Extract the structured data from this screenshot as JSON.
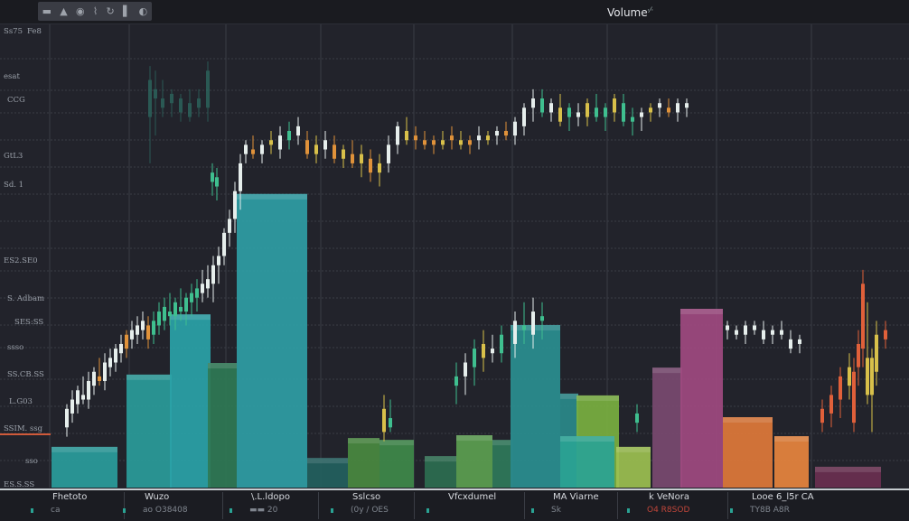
{
  "toolbar": {
    "icons": [
      "square-icon",
      "flask-icon",
      "settings-icon",
      "pin-icon",
      "refresh-icon",
      "bookmark-icon",
      "theme-icon"
    ],
    "glyphs": [
      "▬",
      "▲",
      "◉",
      "⌇",
      "↻",
      "▌",
      "◐"
    ]
  },
  "header": {
    "title": "Volume",
    "title_mark": "⋅⁄⋅"
  },
  "left_axis_labels": [
    "Ss75",
    "Fe8",
    "esat",
    "CCG",
    "GtL3",
    "Sd. 1",
    "ES2.SE0",
    "S. Adbam",
    "SES:SS",
    "ssso",
    "SS.CB.SS",
    "L.G03",
    "SSIM. ssg",
    "sso",
    "ES.S.SS"
  ],
  "bottom_sections": [
    {
      "title": "Fhetoto",
      "sub": "ca"
    },
    {
      "title": "Wuzo",
      "sub": "ao  O38408"
    },
    {
      "title": "\\.L.ldopo",
      "sub": "▬▬  20"
    },
    {
      "title": "Sslcso",
      "sub": "(0y / OES"
    },
    {
      "title": "Vfcxdumel",
      "sub": ""
    },
    {
      "title": "MA Viarne",
      "sub": "Sk"
    },
    {
      "title": "k VeNora",
      "sub": "O4 R8SOD"
    },
    {
      "title": "Looe   6_l5r   CA",
      "sub": "TY8B          A8R"
    }
  ],
  "colors": {
    "background": "#22232b",
    "grid": "#3a3c46",
    "candle_palette": [
      "#e6eeec",
      "#e0923a",
      "#3fbf8f",
      "#2d6b62",
      "#d8c04a",
      "#e0603a"
    ],
    "accent_line": "#d05a3a"
  },
  "chart_data": {
    "type": "bar",
    "overlay_type": "candlestick",
    "title": "Volume",
    "ylim": [
      0,
      100
    ],
    "xlim": [
      0,
      100.6
    ],
    "grid": true,
    "volume_bars": [
      {
        "start": 5.7,
        "end": 13.0,
        "value": 8.8,
        "color": "#2a9d9c"
      },
      {
        "start": 14.0,
        "end": 19.0,
        "value": 24.4,
        "color": "#2a9c9a"
      },
      {
        "start": 18.8,
        "end": 23.3,
        "value": 37.4,
        "color": "#2aa3a8"
      },
      {
        "start": 23.0,
        "end": 26.2,
        "value": 26.9,
        "color": "#2f7a55"
      },
      {
        "start": 26.2,
        "end": 34.0,
        "value": 63.4,
        "color": "#2f9ea5"
      },
      {
        "start": 34.0,
        "end": 38.5,
        "value": 6.4,
        "color": "#23615e"
      },
      {
        "start": 38.5,
        "end": 42.0,
        "value": 10.7,
        "color": "#4a8a40"
      },
      {
        "start": 42.0,
        "end": 45.8,
        "value": 10.3,
        "color": "#3f8a4a"
      },
      {
        "start": 47.0,
        "end": 50.5,
        "value": 6.8,
        "color": "#2c6e50"
      },
      {
        "start": 50.5,
        "end": 54.5,
        "value": 11.3,
        "color": "#5ca050"
      },
      {
        "start": 54.5,
        "end": 56.5,
        "value": 10.3,
        "color": "#2f7a5a"
      },
      {
        "start": 56.5,
        "end": 62.0,
        "value": 35.1,
        "color": "#2a8f90"
      },
      {
        "start": 62.0,
        "end": 64.0,
        "value": 20.3,
        "color": "#2a8a8a"
      },
      {
        "start": 63.8,
        "end": 68.5,
        "value": 19.9,
        "color": "#7ab040"
      },
      {
        "start": 62.0,
        "end": 68.0,
        "value": 11.1,
        "color": "#2aa394"
      },
      {
        "start": 68.2,
        "end": 72.0,
        "value": 8.8,
        "color": "#9cc050"
      },
      {
        "start": 72.2,
        "end": 75.5,
        "value": 25.9,
        "color": "#7a4a70"
      },
      {
        "start": 75.3,
        "end": 80.0,
        "value": 38.6,
        "color": "#a04a80"
      },
      {
        "start": 80.0,
        "end": 85.5,
        "value": 15.2,
        "color": "#e07a3a"
      },
      {
        "start": 85.7,
        "end": 89.5,
        "value": 11.1,
        "color": "#e8853e"
      },
      {
        "start": 90.2,
        "end": 97.5,
        "value": 4.5,
        "color": "#6a3050"
      }
    ],
    "candles_fields": [
      "t",
      "open",
      "high",
      "low",
      "close",
      "palette_index"
    ],
    "candles": [
      [
        7.4,
        13,
        18,
        11,
        17,
        0
      ],
      [
        8.0,
        16,
        21,
        14,
        19,
        0
      ],
      [
        8.6,
        18,
        22,
        16,
        21,
        0
      ],
      [
        9.2,
        20,
        24,
        18,
        19,
        0
      ],
      [
        9.8,
        19,
        25,
        17,
        23,
        0
      ],
      [
        10.4,
        22,
        26,
        20,
        25,
        0
      ],
      [
        11.0,
        24,
        28,
        22,
        23,
        1
      ],
      [
        11.6,
        23,
        29,
        21,
        27,
        0
      ],
      [
        12.2,
        26,
        30,
        24,
        28,
        0
      ],
      [
        12.8,
        27,
        31,
        25,
        30,
        0
      ],
      [
        13.4,
        29,
        33,
        27,
        31,
        0
      ],
      [
        14.0,
        30,
        34,
        28,
        33,
        1
      ],
      [
        14.6,
        32,
        36,
        30,
        34,
        0
      ],
      [
        15.2,
        33,
        37,
        31,
        35,
        0
      ],
      [
        15.8,
        34,
        38,
        32,
        36,
        0
      ],
      [
        16.4,
        35,
        37,
        30,
        32,
        1
      ],
      [
        17.0,
        33,
        38,
        31,
        36,
        2
      ],
      [
        17.6,
        35,
        40,
        33,
        38,
        2
      ],
      [
        18.2,
        36,
        41,
        34,
        39,
        2
      ],
      [
        18.8,
        38,
        42,
        35,
        37,
        2
      ],
      [
        19.4,
        37,
        41,
        34,
        40,
        2
      ],
      [
        20.0,
        39,
        43,
        36,
        38,
        2
      ],
      [
        20.6,
        38,
        42,
        35,
        41,
        2
      ],
      [
        21.2,
        40,
        44,
        37,
        42,
        2
      ],
      [
        21.8,
        41,
        45,
        38,
        43,
        2
      ],
      [
        22.4,
        42,
        47,
        40,
        44,
        0
      ],
      [
        23.0,
        43,
        48,
        41,
        45,
        0
      ],
      [
        23.6,
        44,
        50,
        40,
        48,
        0
      ],
      [
        24.2,
        48,
        52,
        44,
        50,
        0
      ],
      [
        24.8,
        50,
        56,
        48,
        55,
        0
      ],
      [
        25.4,
        55,
        60,
        52,
        58,
        0
      ],
      [
        26.0,
        58,
        66,
        55,
        64,
        0
      ],
      [
        26.6,
        64,
        72,
        60,
        70,
        0
      ],
      [
        23.5,
        66,
        70,
        63,
        68,
        2
      ],
      [
        24.0,
        65,
        69,
        62,
        67,
        2
      ],
      [
        16.6,
        80,
        91,
        70,
        88,
        3
      ],
      [
        17.2,
        84,
        90,
        76,
        86,
        3
      ],
      [
        18.0,
        82,
        88,
        80,
        84,
        3
      ],
      [
        19.0,
        83,
        86,
        80,
        85,
        3
      ],
      [
        20.0,
        81,
        85,
        79,
        84,
        3
      ],
      [
        21.0,
        80,
        86,
        79,
        83,
        3
      ],
      [
        22.0,
        82,
        86,
        80,
        84,
        3
      ],
      [
        23.0,
        82,
        92,
        79,
        90,
        3
      ],
      [
        27.2,
        72,
        75,
        70,
        74,
        0
      ],
      [
        28.0,
        73,
        76,
        71,
        72,
        1
      ],
      [
        29.0,
        72,
        75,
        70,
        74,
        0
      ],
      [
        30.0,
        74,
        77,
        72,
        75,
        4
      ],
      [
        31.0,
        73,
        78,
        71,
        76,
        0
      ],
      [
        32.0,
        75,
        79,
        73,
        77,
        2
      ],
      [
        33.0,
        76,
        80,
        74,
        78,
        0
      ],
      [
        34.0,
        75,
        77,
        71,
        72,
        1
      ],
      [
        35.0,
        72,
        76,
        70,
        74,
        4
      ],
      [
        36.0,
        73,
        77,
        71,
        75,
        0
      ],
      [
        37.0,
        74,
        76,
        70,
        71,
        1
      ],
      [
        38.0,
        71,
        74,
        69,
        73,
        4
      ],
      [
        39.0,
        72,
        75,
        69,
        70,
        1
      ],
      [
        40.0,
        70,
        74,
        67,
        72,
        4
      ],
      [
        41.0,
        71,
        73,
        66,
        68,
        1
      ],
      [
        42.0,
        68,
        72,
        65,
        70,
        4
      ],
      [
        43.0,
        70,
        76,
        68,
        74,
        0
      ],
      [
        44.0,
        74,
        79,
        72,
        78,
        0
      ],
      [
        45.0,
        77,
        80,
        74,
        75,
        4
      ],
      [
        46.0,
        75,
        78,
        73,
        76,
        1
      ],
      [
        47.0,
        75,
        77,
        73,
        74,
        1
      ],
      [
        48.0,
        74,
        76,
        72,
        75,
        1
      ],
      [
        49.0,
        74,
        77,
        73,
        75,
        4
      ],
      [
        50.0,
        75,
        78,
        73,
        76,
        1
      ],
      [
        51.0,
        75,
        77,
        73,
        74,
        4
      ],
      [
        52.0,
        74,
        76,
        72,
        75,
        1
      ],
      [
        53.0,
        75,
        78,
        73,
        76,
        0
      ],
      [
        54.0,
        75,
        77,
        74,
        76,
        4
      ],
      [
        55.0,
        76,
        78,
        74,
        77,
        0
      ],
      [
        56.0,
        77,
        79,
        75,
        76,
        1
      ],
      [
        57.0,
        76,
        80,
        74,
        79,
        0
      ],
      [
        58.0,
        78,
        83,
        76,
        82,
        0
      ],
      [
        59.0,
        82,
        86,
        79,
        84,
        0
      ],
      [
        60.0,
        84,
        86,
        80,
        81,
        2
      ],
      [
        61.0,
        81,
        84,
        79,
        83,
        0
      ],
      [
        62.0,
        82,
        85,
        78,
        79,
        4
      ],
      [
        63.0,
        80,
        83,
        77,
        82,
        2
      ],
      [
        64.0,
        81,
        83,
        78,
        80,
        0
      ],
      [
        65.0,
        80,
        84,
        78,
        83,
        4
      ],
      [
        66.0,
        82,
        85,
        79,
        80,
        2
      ],
      [
        67.0,
        80,
        83,
        77,
        82,
        2
      ],
      [
        68.0,
        81,
        85,
        79,
        84,
        4
      ],
      [
        69.0,
        83,
        85,
        78,
        79,
        2
      ],
      [
        70.0,
        79,
        82,
        76,
        80,
        2
      ],
      [
        71.0,
        80,
        82,
        77,
        81,
        0
      ],
      [
        72.0,
        81,
        83,
        79,
        82,
        4
      ],
      [
        73.0,
        82,
        84,
        80,
        83,
        0
      ],
      [
        74.0,
        82,
        84,
        80,
        81,
        1
      ],
      [
        75.0,
        81,
        84,
        79,
        83,
        0
      ],
      [
        76.0,
        82,
        84,
        80,
        83,
        0
      ],
      [
        50.5,
        22,
        27,
        18,
        24,
        2
      ],
      [
        51.5,
        24,
        29,
        20,
        27,
        0
      ],
      [
        52.5,
        26,
        32,
        22,
        30,
        2
      ],
      [
        53.5,
        28,
        34,
        25,
        31,
        4
      ],
      [
        54.5,
        30,
        33,
        27,
        29,
        0
      ],
      [
        55.5,
        29,
        35,
        27,
        33,
        2
      ],
      [
        57.0,
        31,
        38,
        28,
        36,
        0
      ],
      [
        58.0,
        35,
        40,
        31,
        34,
        2
      ],
      [
        59.0,
        33,
        41,
        30,
        38,
        0
      ],
      [
        60.0,
        36,
        40,
        32,
        37,
        2
      ],
      [
        42.5,
        12,
        20,
        10,
        17,
        4
      ],
      [
        43.2,
        15,
        19,
        12,
        13,
        2
      ],
      [
        70.5,
        14,
        18,
        12,
        16,
        2
      ],
      [
        80.5,
        34,
        36,
        32,
        35,
        0
      ],
      [
        81.5,
        34,
        35,
        32,
        33,
        0
      ],
      [
        82.5,
        33,
        36,
        31,
        35,
        0
      ],
      [
        83.5,
        34,
        36,
        33,
        35,
        0
      ],
      [
        84.5,
        34,
        36,
        31,
        32,
        0
      ],
      [
        85.5,
        33,
        35,
        31,
        34,
        0
      ],
      [
        86.5,
        34,
        36,
        32,
        33,
        0
      ],
      [
        87.5,
        32,
        34,
        29,
        30,
        0
      ],
      [
        88.5,
        31,
        33,
        29,
        32,
        0
      ],
      [
        91.0,
        14,
        19,
        12,
        17,
        5
      ],
      [
        92.0,
        16,
        22,
        13,
        20,
        5
      ],
      [
        93.0,
        19,
        26,
        15,
        24,
        5
      ],
      [
        94.0,
        22,
        29,
        19,
        26,
        4
      ],
      [
        94.5,
        14,
        28,
        12,
        25,
        5
      ],
      [
        95.0,
        26,
        34,
        22,
        31,
        5
      ],
      [
        95.5,
        30,
        47,
        26,
        44,
        5
      ],
      [
        96.0,
        28,
        40,
        18,
        20,
        4
      ],
      [
        96.5,
        20,
        30,
        12,
        28,
        4
      ],
      [
        97.0,
        25,
        36,
        22,
        33,
        4
      ],
      [
        98.0,
        32,
        36,
        30,
        34,
        5
      ]
    ]
  }
}
